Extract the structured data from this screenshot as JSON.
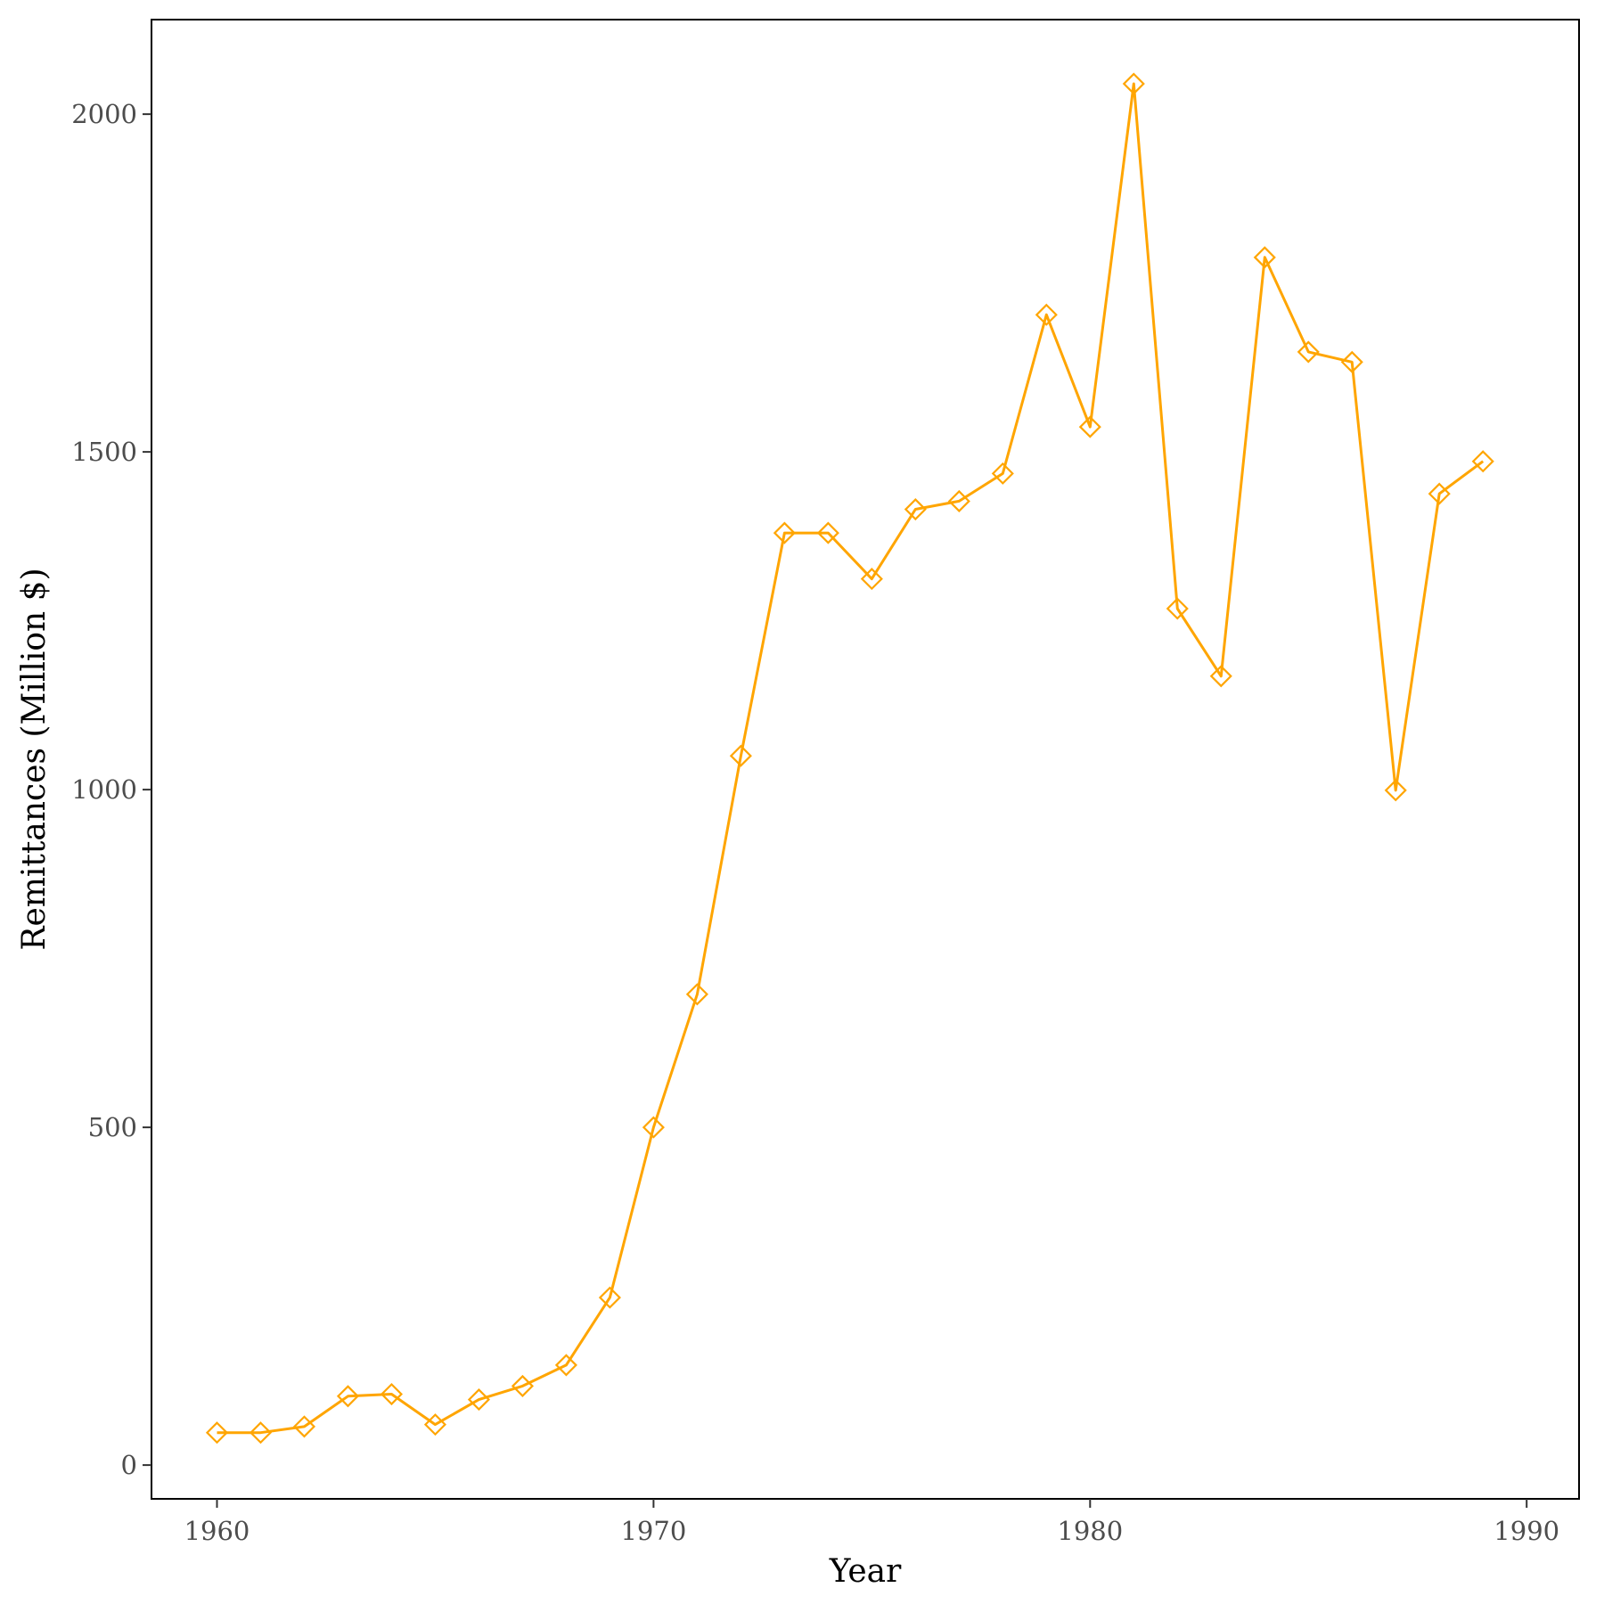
{
  "chart_data": {
    "type": "line",
    "title": "",
    "xlabel": "Year",
    "ylabel": "Remittances (Million $)",
    "xlim": [
      1958.5,
      1991.2
    ],
    "ylim": [
      -50,
      2140
    ],
    "x_ticks": [
      1960,
      1970,
      1980,
      1990
    ],
    "y_ticks": [
      0,
      500,
      1000,
      1500,
      2000
    ],
    "grid": false,
    "legend": "none",
    "marker": "open-diamond",
    "color": "#FFA500",
    "series": [
      {
        "x": [
          1960,
          1961,
          1962,
          1963,
          1964,
          1965,
          1966,
          1967,
          1968,
          1969,
          1970,
          1971,
          1972,
          1973,
          1974,
          1975,
          1976,
          1977,
          1978,
          1979,
          1980,
          1981,
          1982,
          1983,
          1984,
          1985,
          1986,
          1987,
          1988,
          1989
        ],
        "values": [
          48,
          48,
          57,
          102,
          105,
          60,
          97,
          117,
          148,
          248,
          500,
          697,
          1050,
          1380,
          1380,
          1312,
          1415,
          1427,
          1468,
          1703,
          1537,
          2045,
          1268,
          1168,
          1788,
          1648,
          1633,
          999,
          1438,
          1486
        ]
      }
    ]
  }
}
